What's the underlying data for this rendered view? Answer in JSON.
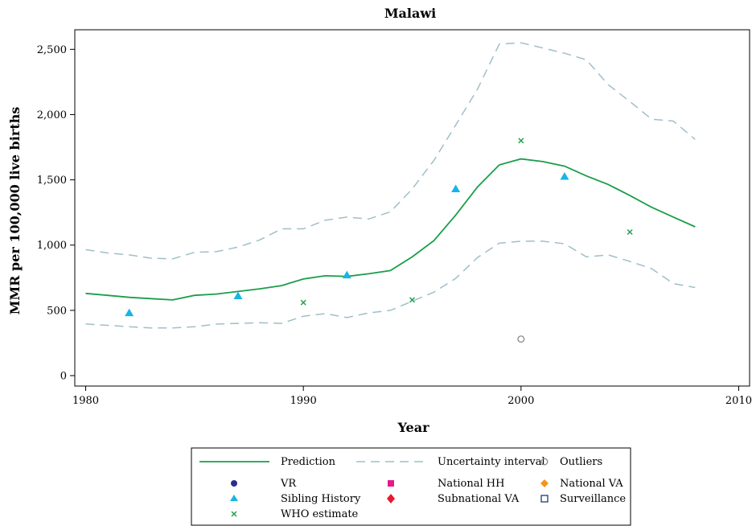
{
  "chart_data": {
    "type": "line",
    "title": "Malawi",
    "xlabel": "Year",
    "ylabel": "MMR per 100,000 live births",
    "xlim": [
      1979.5,
      2010.5
    ],
    "ylim": [
      -80,
      2650
    ],
    "xticks": [
      1980,
      1990,
      2000,
      2010
    ],
    "xtick_labels": [
      "1980",
      "1990",
      "2000",
      "2010"
    ],
    "yticks": [
      0,
      500,
      1000,
      1500,
      2000,
      2500
    ],
    "ytick_labels": [
      "0",
      "500",
      "1,000",
      "1,500",
      "2,000",
      "2,500"
    ],
    "grid": false,
    "legend_position": "bottom",
    "colors": {
      "prediction": "#1a9e4a",
      "uncertainty": "#9fbfc8",
      "vr": "#2b2d8c",
      "sibling": "#18b4e6",
      "who": "#1a9e4a",
      "national_hh": "#e6198a",
      "subnational_va": "#e6192e",
      "national_va": "#f7941d",
      "surveillance": "#1f3f6e",
      "outlier": "#8a8a8a"
    },
    "prediction": {
      "x": [
        1980,
        1981,
        1982,
        1983,
        1984,
        1985,
        1986,
        1987,
        1988,
        1989,
        1990,
        1991,
        1992,
        1993,
        1994,
        1995,
        1996,
        1997,
        1998,
        1999,
        2000,
        2001,
        2002,
        2003,
        2004,
        2005,
        2006,
        2007,
        2008
      ],
      "y": [
        630,
        615,
        600,
        590,
        580,
        615,
        625,
        645,
        665,
        690,
        740,
        765,
        760,
        780,
        805,
        910,
        1035,
        1230,
        1445,
        1615,
        1660,
        1640,
        1605,
        1530,
        1465,
        1380,
        1290,
        1215,
        1140
      ]
    },
    "uncertainty_upper": {
      "x": [
        1980,
        1981,
        1982,
        1983,
        1984,
        1985,
        1986,
        1987,
        1988,
        1989,
        1990,
        1991,
        1992,
        1993,
        1994,
        1995,
        1996,
        1997,
        1998,
        1999,
        2000,
        2001,
        2002,
        2003,
        2004,
        2005,
        2006,
        2007,
        2008
      ],
      "y": [
        965,
        940,
        925,
        900,
        895,
        945,
        950,
        985,
        1040,
        1125,
        1125,
        1190,
        1215,
        1200,
        1255,
        1430,
        1650,
        1920,
        2195,
        2540,
        2550,
        2510,
        2470,
        2420,
        2230,
        2100,
        1965,
        1950,
        1810
      ]
    },
    "uncertainty_lower": {
      "x": [
        1980,
        1981,
        1982,
        1983,
        1984,
        1985,
        1986,
        1987,
        1988,
        1989,
        1990,
        1991,
        1992,
        1993,
        1994,
        1995,
        1996,
        1997,
        1998,
        1999,
        2000,
        2001,
        2002,
        2003,
        2004,
        2005,
        2006,
        2007,
        2008
      ],
      "y": [
        395,
        385,
        375,
        365,
        365,
        375,
        395,
        400,
        405,
        400,
        455,
        475,
        445,
        480,
        500,
        570,
        640,
        745,
        905,
        1015,
        1030,
        1030,
        1010,
        910,
        925,
        875,
        820,
        705,
        675
      ]
    },
    "sibling_history": {
      "x": [
        1982,
        1987,
        1992,
        1997,
        2002
      ],
      "y": [
        480,
        610,
        770,
        1430,
        1525
      ]
    },
    "who_estimate": {
      "x": [
        1990,
        1995,
        2000,
        2005
      ],
      "y": [
        560,
        580,
        1800,
        1100
      ]
    },
    "outliers": {
      "x": [
        2000
      ],
      "y": [
        280
      ]
    },
    "legend": {
      "prediction": "Prediction",
      "uncertainty": "Uncertainty interval",
      "outliers": "Outliers",
      "vr": "VR",
      "national_hh": "National HH",
      "national_va": "National VA",
      "sibling": "Sibling History",
      "subnational_va": "Subnational VA",
      "surveillance": "Surveillance",
      "who": "WHO estimate"
    }
  }
}
